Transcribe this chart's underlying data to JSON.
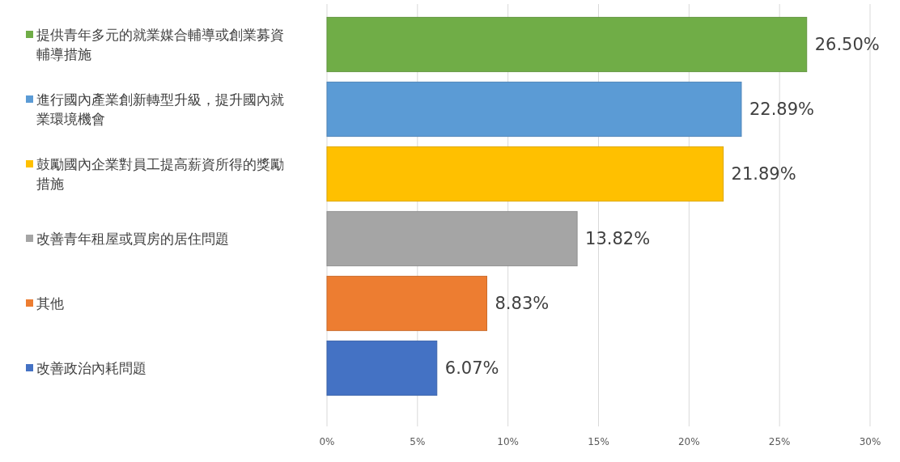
{
  "chart_data": {
    "type": "bar",
    "orientation": "horizontal",
    "categories": [
      "提供青年多元的就業媒合輔導或創業募資輔導措施",
      "進行國內產業創新轉型升級，提升國內就業環境機會",
      "鼓勵國內企業對員工提高薪資所得的獎勵措施",
      "改善青年租屋或買房的居住問題",
      "其他",
      "改善政治內耗問題"
    ],
    "values": [
      26.5,
      22.89,
      21.89,
      13.82,
      8.83,
      6.07
    ],
    "colors": [
      "#70ad47",
      "#5b9bd5",
      "#ffc000",
      "#a5a5a5",
      "#ed7d31",
      "#4472c4"
    ],
    "value_labels": [
      "26.50%",
      "22.89%",
      "21.89%",
      "13.82%",
      "8.83%",
      "6.07%"
    ],
    "xlim": [
      0,
      30
    ],
    "xticks": [
      {
        "value": 0,
        "label": "0%"
      },
      {
        "value": 5,
        "label": "5%"
      },
      {
        "value": 10,
        "label": "10%"
      },
      {
        "value": 15,
        "label": "15%"
      },
      {
        "value": 20,
        "label": "20%"
      },
      {
        "value": 25,
        "label": "25%"
      },
      {
        "value": 30,
        "label": "30%"
      }
    ],
    "grid": "x"
  }
}
